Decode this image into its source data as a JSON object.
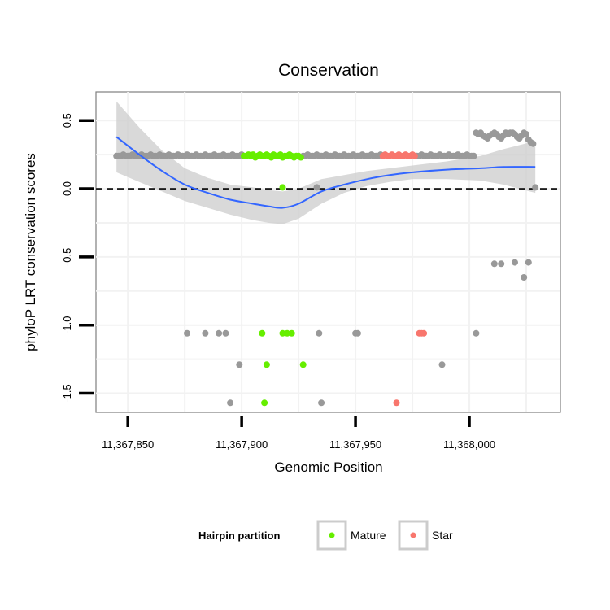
{
  "chart_data": {
    "type": "scatter",
    "title": "Conservation",
    "xlabel": "Genomic Position",
    "ylabel": "phyloP LRT conservation scores",
    "xlim": [
      11367836,
      11368040
    ],
    "ylim": [
      -1.64,
      0.71
    ],
    "x_ticks": [
      {
        "value": 11367850,
        "label": "11,367,850"
      },
      {
        "value": 11367900,
        "label": "11,367,900"
      },
      {
        "value": 11367950,
        "label": "11,367,950"
      },
      {
        "value": 11368000,
        "label": "11,368,000"
      }
    ],
    "y_ticks": [
      {
        "value": 0.5,
        "label": "0.5"
      },
      {
        "value": 0.0,
        "label": "0.0"
      },
      {
        "value": -0.5,
        "label": "-0.5"
      },
      {
        "value": -1.0,
        "label": "-1.0"
      },
      {
        "value": -1.5,
        "label": "-1.5"
      }
    ],
    "reference_line": {
      "y": 0,
      "style": "dashed"
    },
    "legend": {
      "title": "Hairpin partition",
      "position": "bottom",
      "entries": [
        {
          "label": "Mature",
          "color": "#66ee00"
        },
        {
          "label": "Star",
          "color": "#f8766d"
        }
      ]
    },
    "colors": {
      "other": "#999999",
      "mature": "#66ee00",
      "star": "#f8766d",
      "smooth": "#3366ff",
      "band": "#cccccc"
    },
    "series": [
      {
        "name": "Mature",
        "points": [
          [
            11367901,
            0.24
          ],
          [
            11367902,
            0.24
          ],
          [
            11367903,
            0.25
          ],
          [
            11367904,
            0.24
          ],
          [
            11367905,
            0.25
          ],
          [
            11367906,
            0.23
          ],
          [
            11367907,
            0.24
          ],
          [
            11367908,
            0.25
          ],
          [
            11367909,
            0.24
          ],
          [
            11367910,
            0.24
          ],
          [
            11367911,
            0.25
          ],
          [
            11367912,
            0.24
          ],
          [
            11367913,
            0.23
          ],
          [
            11367914,
            0.25
          ],
          [
            11367915,
            0.24
          ],
          [
            11367916,
            0.24
          ],
          [
            11367917,
            0.25
          ],
          [
            11367918,
            0.23
          ],
          [
            11367919,
            0.24
          ],
          [
            11367920,
            0.24
          ],
          [
            11367921,
            0.25
          ],
          [
            11367922,
            0.24
          ],
          [
            11367923,
            0.23
          ],
          [
            11367924,
            0.24
          ],
          [
            11367925,
            0.24
          ],
          [
            11367926,
            0.23
          ],
          [
            11367918,
            0.01
          ],
          [
            11367909,
            -1.06
          ],
          [
            11367918,
            -1.06
          ],
          [
            11367920,
            -1.06
          ],
          [
            11367922,
            -1.06
          ],
          [
            11367911,
            -1.29
          ],
          [
            11367927,
            -1.29
          ],
          [
            11367910,
            -1.57
          ]
        ]
      },
      {
        "name": "Star",
        "points": [
          [
            11367962,
            0.24
          ],
          [
            11367963,
            0.25
          ],
          [
            11367964,
            0.24
          ],
          [
            11367965,
            0.24
          ],
          [
            11367966,
            0.25
          ],
          [
            11367967,
            0.24
          ],
          [
            11367968,
            0.24
          ],
          [
            11367969,
            0.25
          ],
          [
            11367970,
            0.24
          ],
          [
            11367971,
            0.24
          ],
          [
            11367972,
            0.25
          ],
          [
            11367973,
            0.24
          ],
          [
            11367974,
            0.24
          ],
          [
            11367975,
            0.25
          ],
          [
            11367976,
            0.24
          ],
          [
            11367978,
            -1.06
          ],
          [
            11367979,
            -1.06
          ],
          [
            11367980,
            -1.06
          ],
          [
            11367968,
            -1.57
          ]
        ]
      },
      {
        "name": "Other",
        "points": [
          [
            11367845,
            0.24
          ],
          [
            11367846,
            0.24
          ],
          [
            11367847,
            0.24
          ],
          [
            11367848,
            0.25
          ],
          [
            11367849,
            0.24
          ],
          [
            11367850,
            0.24
          ],
          [
            11367851,
            0.24
          ],
          [
            11367852,
            0.25
          ],
          [
            11367853,
            0.24
          ],
          [
            11367854,
            0.24
          ],
          [
            11367855,
            0.24
          ],
          [
            11367856,
            0.25
          ],
          [
            11367857,
            0.24
          ],
          [
            11367858,
            0.24
          ],
          [
            11367859,
            0.24
          ],
          [
            11367860,
            0.25
          ],
          [
            11367861,
            0.24
          ],
          [
            11367862,
            0.24
          ],
          [
            11367863,
            0.24
          ],
          [
            11367864,
            0.25
          ],
          [
            11367865,
            0.24
          ],
          [
            11367866,
            0.24
          ],
          [
            11367867,
            0.24
          ],
          [
            11367868,
            0.25
          ],
          [
            11367869,
            0.24
          ],
          [
            11367870,
            0.24
          ],
          [
            11367871,
            0.24
          ],
          [
            11367872,
            0.25
          ],
          [
            11367873,
            0.24
          ],
          [
            11367874,
            0.24
          ],
          [
            11367875,
            0.24
          ],
          [
            11367876,
            0.25
          ],
          [
            11367877,
            0.24
          ],
          [
            11367878,
            0.24
          ],
          [
            11367879,
            0.24
          ],
          [
            11367880,
            0.25
          ],
          [
            11367881,
            0.24
          ],
          [
            11367882,
            0.24
          ],
          [
            11367883,
            0.24
          ],
          [
            11367884,
            0.25
          ],
          [
            11367885,
            0.24
          ],
          [
            11367886,
            0.24
          ],
          [
            11367887,
            0.24
          ],
          [
            11367888,
            0.25
          ],
          [
            11367889,
            0.24
          ],
          [
            11367890,
            0.24
          ],
          [
            11367891,
            0.24
          ],
          [
            11367892,
            0.25
          ],
          [
            11367893,
            0.24
          ],
          [
            11367894,
            0.24
          ],
          [
            11367895,
            0.24
          ],
          [
            11367896,
            0.25
          ],
          [
            11367897,
            0.24
          ],
          [
            11367898,
            0.24
          ],
          [
            11367899,
            0.24
          ],
          [
            11367900,
            0.25
          ],
          [
            11367927,
            0.24
          ],
          [
            11367928,
            0.24
          ],
          [
            11367929,
            0.25
          ],
          [
            11367930,
            0.24
          ],
          [
            11367931,
            0.24
          ],
          [
            11367932,
            0.24
          ],
          [
            11367933,
            0.25
          ],
          [
            11367934,
            0.24
          ],
          [
            11367935,
            0.24
          ],
          [
            11367936,
            0.24
          ],
          [
            11367937,
            0.25
          ],
          [
            11367938,
            0.24
          ],
          [
            11367939,
            0.24
          ],
          [
            11367940,
            0.24
          ],
          [
            11367941,
            0.25
          ],
          [
            11367942,
            0.24
          ],
          [
            11367943,
            0.24
          ],
          [
            11367944,
            0.24
          ],
          [
            11367945,
            0.25
          ],
          [
            11367946,
            0.24
          ],
          [
            11367947,
            0.24
          ],
          [
            11367948,
            0.24
          ],
          [
            11367949,
            0.25
          ],
          [
            11367950,
            0.24
          ],
          [
            11367951,
            0.24
          ],
          [
            11367952,
            0.24
          ],
          [
            11367953,
            0.25
          ],
          [
            11367954,
            0.24
          ],
          [
            11367955,
            0.24
          ],
          [
            11367956,
            0.24
          ],
          [
            11367957,
            0.25
          ],
          [
            11367958,
            0.24
          ],
          [
            11367959,
            0.24
          ],
          [
            11367960,
            0.24
          ],
          [
            11367961,
            0.25
          ],
          [
            11367977,
            0.24
          ],
          [
            11367978,
            0.24
          ],
          [
            11367979,
            0.25
          ],
          [
            11367980,
            0.24
          ],
          [
            11367981,
            0.24
          ],
          [
            11367982,
            0.24
          ],
          [
            11367983,
            0.25
          ],
          [
            11367984,
            0.24
          ],
          [
            11367985,
            0.24
          ],
          [
            11367986,
            0.24
          ],
          [
            11367987,
            0.25
          ],
          [
            11367988,
            0.24
          ],
          [
            11367989,
            0.24
          ],
          [
            11367990,
            0.24
          ],
          [
            11367991,
            0.25
          ],
          [
            11367992,
            0.24
          ],
          [
            11367993,
            0.24
          ],
          [
            11367994,
            0.24
          ],
          [
            11367995,
            0.25
          ],
          [
            11367996,
            0.24
          ],
          [
            11367997,
            0.24
          ],
          [
            11367998,
            0.24
          ],
          [
            11367999,
            0.25
          ],
          [
            11368000,
            0.24
          ],
          [
            11368001,
            0.24
          ],
          [
            11368002,
            0.24
          ],
          [
            11368003,
            0.41
          ],
          [
            11368004,
            0.4
          ],
          [
            11368005,
            0.41
          ],
          [
            11368006,
            0.39
          ],
          [
            11368007,
            0.38
          ],
          [
            11368008,
            0.37
          ],
          [
            11368009,
            0.39
          ],
          [
            11368010,
            0.4
          ],
          [
            11368011,
            0.41
          ],
          [
            11368012,
            0.4
          ],
          [
            11368013,
            0.38
          ],
          [
            11368014,
            0.37
          ],
          [
            11368015,
            0.39
          ],
          [
            11368016,
            0.41
          ],
          [
            11368017,
            0.4
          ],
          [
            11368018,
            0.41
          ],
          [
            11368019,
            0.41
          ],
          [
            11368020,
            0.4
          ],
          [
            11368021,
            0.38
          ],
          [
            11368022,
            0.37
          ],
          [
            11368023,
            0.39
          ],
          [
            11368024,
            0.41
          ],
          [
            11368025,
            0.4
          ],
          [
            11368026,
            0.36
          ],
          [
            11368027,
            0.34
          ],
          [
            11368028,
            0.33
          ],
          [
            11367933,
            0.01
          ],
          [
            11368029,
            0.01
          ],
          [
            11367876,
            -1.06
          ],
          [
            11367884,
            -1.06
          ],
          [
            11367890,
            -1.06
          ],
          [
            11367893,
            -1.06
          ],
          [
            11367934,
            -1.06
          ],
          [
            11367950,
            -1.06
          ],
          [
            11367951,
            -1.06
          ],
          [
            11368003,
            -1.06
          ],
          [
            11368011,
            -0.55
          ],
          [
            11368014,
            -0.55
          ],
          [
            11368020,
            -0.54
          ],
          [
            11368026,
            -0.54
          ],
          [
            11368024,
            -0.65
          ],
          [
            11367899,
            -1.29
          ],
          [
            11367988,
            -1.29
          ],
          [
            11367895,
            -1.57
          ],
          [
            11367935,
            -1.57
          ]
        ]
      }
    ],
    "smooth": {
      "name": "loess fit",
      "x": [
        11367845,
        11367855,
        11367865,
        11367875,
        11367885,
        11367895,
        11367905,
        11367912,
        11367918,
        11367925,
        11367935,
        11367945,
        11367955,
        11367965,
        11367975,
        11367990,
        11368005,
        11368015,
        11368029
      ],
      "y": [
        0.38,
        0.25,
        0.13,
        0.03,
        -0.03,
        -0.08,
        -0.11,
        -0.13,
        -0.14,
        -0.11,
        -0.02,
        0.03,
        0.07,
        0.1,
        0.12,
        0.14,
        0.15,
        0.16,
        0.16
      ],
      "lower": [
        0.12,
        0.05,
        -0.02,
        -0.09,
        -0.14,
        -0.19,
        -0.23,
        -0.25,
        -0.26,
        -0.22,
        -0.11,
        -0.03,
        0.02,
        0.05,
        0.07,
        0.07,
        0.06,
        0.03,
        -0.03
      ],
      "upper": [
        0.64,
        0.45,
        0.28,
        0.15,
        0.08,
        0.03,
        0.01,
        -0.01,
        -0.02,
        0.0,
        0.07,
        0.1,
        0.13,
        0.15,
        0.17,
        0.2,
        0.24,
        0.29,
        0.35
      ]
    }
  }
}
